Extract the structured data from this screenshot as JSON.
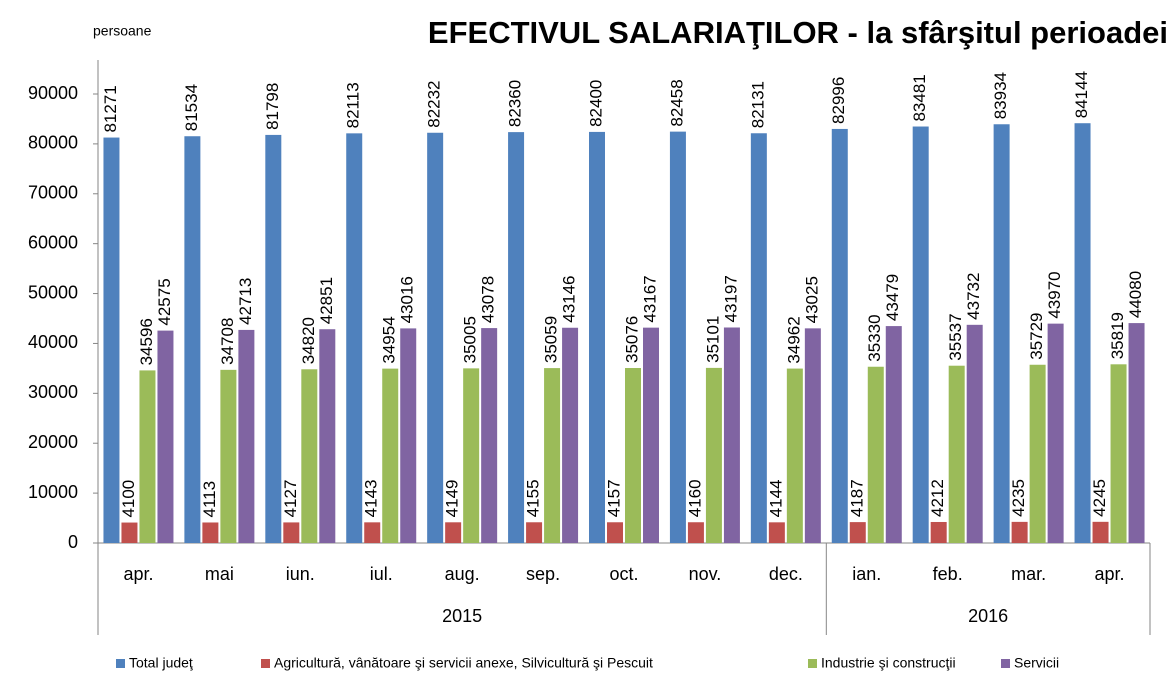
{
  "chart_data": {
    "type": "bar",
    "title": "EFECTIVUL SALARIAŢILOR - la sfârşitul perioadei",
    "y_label": "persoane",
    "categories": [
      "apr.",
      "mai",
      "iun.",
      "iul.",
      "aug.",
      "sep.",
      "oct.",
      "nov.",
      "dec.",
      "ian.",
      "feb.",
      "mar.",
      "apr."
    ],
    "x_groups": [
      {
        "label": "2015",
        "size": 9
      },
      {
        "label": "2016",
        "size": 4
      }
    ],
    "series": [
      {
        "name": "Total judeţ",
        "color": "#4f81bd",
        "values": [
          81271,
          81534,
          81798,
          82113,
          82232,
          82360,
          82400,
          82458,
          82131,
          82996,
          83481,
          83934,
          84144
        ]
      },
      {
        "name": "Agricultură, vânătoare şi servicii anexe, Silvicultură şi Pescuit",
        "color": "#c0504d",
        "values": [
          4100,
          4113,
          4127,
          4143,
          4149,
          4155,
          4157,
          4160,
          4144,
          4187,
          4212,
          4235,
          4245
        ]
      },
      {
        "name": "Industrie şi construcţii",
        "color": "#9bbb59",
        "values": [
          34596,
          34708,
          34820,
          34954,
          35005,
          35059,
          35076,
          35101,
          34962,
          35330,
          35537,
          35729,
          35819
        ]
      },
      {
        "name": "Servicii",
        "color": "#8064a2",
        "values": [
          42575,
          42713,
          42851,
          43016,
          43078,
          43146,
          43167,
          43197,
          43025,
          43479,
          43732,
          43970,
          44080
        ]
      }
    ],
    "ylim": [
      0,
      90000
    ],
    "yticks": [
      0,
      10000,
      20000,
      30000,
      40000,
      50000,
      60000,
      70000,
      80000,
      90000
    ],
    "grid": false,
    "legend": "bottom"
  }
}
